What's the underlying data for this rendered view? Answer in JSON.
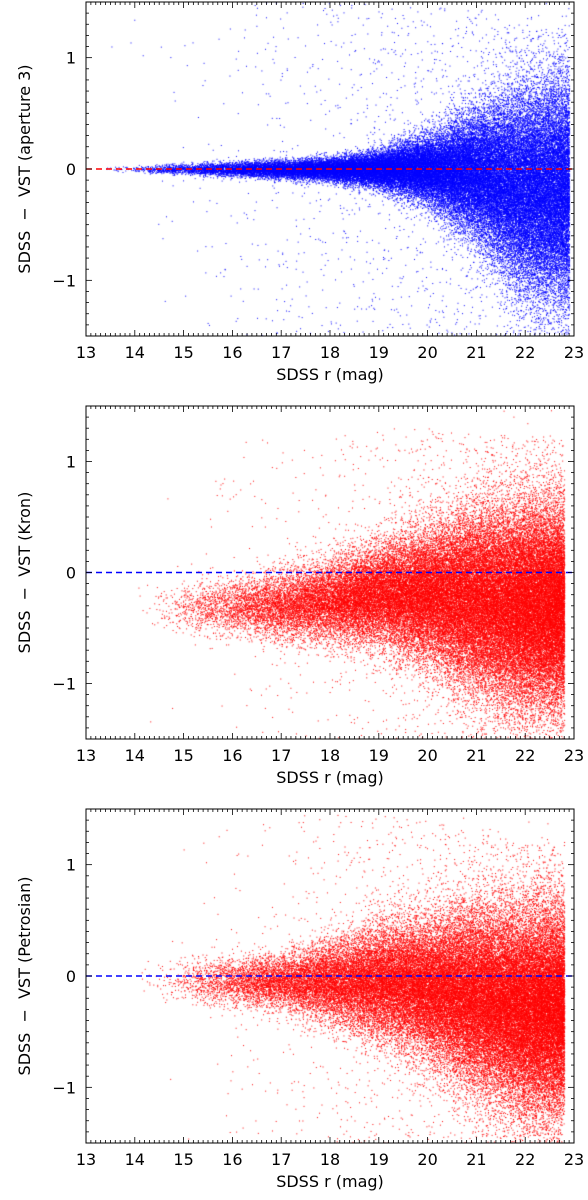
{
  "chart_data": [
    {
      "type": "scatter",
      "xlabel": "SDSS r (mag)",
      "ylabel": "SDSS  −  VST (aperture 3)",
      "xlim": [
        13,
        23
      ],
      "ylim": [
        -1.5,
        1.5
      ],
      "xticks": [
        13,
        14,
        15,
        16,
        17,
        18,
        19,
        20,
        21,
        22,
        23
      ],
      "yticks": [
        -1,
        0,
        1
      ],
      "point_color": "#0000ff",
      "reference_line": {
        "y": 0,
        "color": "#ff0000",
        "style": "dashed"
      },
      "distribution": {
        "x_range": [
          13.2,
          22.9
        ],
        "median_offset": [
          [
            13.2,
            0.0
          ],
          [
            17,
            0.0
          ],
          [
            20,
            0.0
          ],
          [
            21,
            -0.05
          ],
          [
            22,
            -0.2
          ],
          [
            22.9,
            -0.2
          ]
        ],
        "spread": [
          [
            13.2,
            0.01
          ],
          [
            16,
            0.03
          ],
          [
            18,
            0.05
          ],
          [
            19,
            0.08
          ],
          [
            20,
            0.15
          ],
          [
            21,
            0.28
          ],
          [
            22,
            0.45
          ],
          [
            22.9,
            0.5
          ]
        ]
      }
    },
    {
      "type": "scatter",
      "xlabel": "SDSS r (mag)",
      "ylabel": "SDSS  −  VST (Kron)",
      "xlim": [
        13,
        23
      ],
      "ylim": [
        -1.5,
        1.5
      ],
      "xticks": [
        13,
        14,
        15,
        16,
        17,
        18,
        19,
        20,
        21,
        22,
        23
      ],
      "yticks": [
        -1,
        0,
        1
      ],
      "point_color": "#ff0000",
      "reference_line": {
        "y": 0,
        "color": "#0000ff",
        "style": "dashed"
      },
      "distribution": {
        "x_range": [
          14.0,
          22.8
        ],
        "median_offset": [
          [
            14,
            -0.3
          ],
          [
            17,
            -0.3
          ],
          [
            19,
            -0.2
          ],
          [
            20,
            -0.2
          ],
          [
            21,
            -0.25
          ],
          [
            22,
            -0.3
          ],
          [
            22.8,
            -0.3
          ]
        ],
        "spread": [
          [
            14,
            0.1
          ],
          [
            16,
            0.12
          ],
          [
            17,
            0.15
          ],
          [
            18,
            0.18
          ],
          [
            19,
            0.22
          ],
          [
            20,
            0.3
          ],
          [
            21,
            0.4
          ],
          [
            22,
            0.45
          ],
          [
            22.8,
            0.45
          ]
        ]
      }
    },
    {
      "type": "scatter",
      "xlabel": "SDSS r (mag)",
      "ylabel": "SDSS  −  VST (Petrosian)",
      "xlim": [
        13,
        23
      ],
      "ylim": [
        -1.5,
        1.5
      ],
      "xticks": [
        13,
        14,
        15,
        16,
        17,
        18,
        19,
        20,
        21,
        22,
        23
      ],
      "yticks": [
        -1,
        0,
        1
      ],
      "point_color": "#ff0000",
      "reference_line": {
        "y": 0,
        "color": "#0000ff",
        "style": "dashed"
      },
      "distribution": {
        "x_range": [
          14.0,
          22.8
        ],
        "median_offset": [
          [
            14,
            -0.05
          ],
          [
            17,
            -0.05
          ],
          [
            19,
            -0.05
          ],
          [
            20,
            -0.1
          ],
          [
            21,
            -0.2
          ],
          [
            22,
            -0.3
          ],
          [
            22.8,
            -0.3
          ]
        ],
        "spread": [
          [
            14,
            0.1
          ],
          [
            16,
            0.1
          ],
          [
            17,
            0.12
          ],
          [
            18,
            0.18
          ],
          [
            19,
            0.25
          ],
          [
            20,
            0.3
          ],
          [
            21,
            0.4
          ],
          [
            22,
            0.45
          ],
          [
            22.8,
            0.45
          ]
        ]
      }
    }
  ]
}
